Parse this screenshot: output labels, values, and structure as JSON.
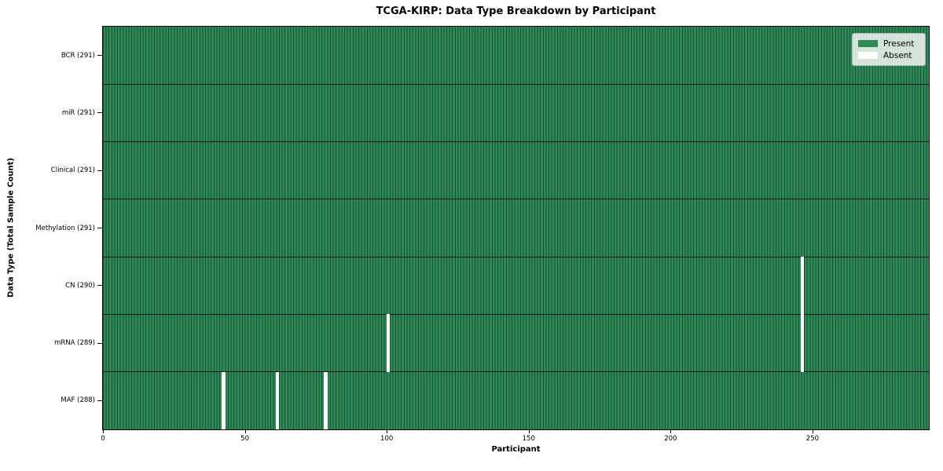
{
  "chart": {
    "title": "TCGA-KIRP: Data Type Breakdown by Participant",
    "xlabel": "Participant",
    "ylabel": "Data Type (Total Sample Count)"
  },
  "chart_data": {
    "type": "heatmap",
    "title": "TCGA-KIRP: Data Type Breakdown by Participant",
    "xlabel": "Participant",
    "ylabel": "Data Type (Total Sample Count)",
    "n_participants": 291,
    "x_range": [
      0,
      291
    ],
    "x_ticks": [
      0,
      50,
      100,
      150,
      200,
      250
    ],
    "grid": false,
    "legend_position": "upper right",
    "legend": [
      {
        "label": "Present",
        "color": "#2e8b57"
      },
      {
        "label": "Absent",
        "color": "#ffffff"
      }
    ],
    "rows": [
      {
        "label": "BCR (291)",
        "data_type": "BCR",
        "present_count": 291,
        "absent_participants": []
      },
      {
        "label": "miR (291)",
        "data_type": "miR",
        "present_count": 291,
        "absent_participants": []
      },
      {
        "label": "Clinical (291)",
        "data_type": "Clinical",
        "present_count": 291,
        "absent_participants": []
      },
      {
        "label": "Methylation (291)",
        "data_type": "Methylation",
        "present_count": 291,
        "absent_participants": []
      },
      {
        "label": "CN (290)",
        "data_type": "CN",
        "present_count": 290,
        "absent_participants": [
          246
        ]
      },
      {
        "label": "mRNA (289)",
        "data_type": "mRNA",
        "present_count": 289,
        "absent_participants": [
          100,
          246
        ]
      },
      {
        "label": "MAF (288)",
        "data_type": "MAF",
        "present_count": 288,
        "absent_participants": [
          42,
          61,
          78
        ]
      }
    ],
    "colors": {
      "present": "#2e8b57",
      "absent": "#ffffff",
      "cell_edge": "rgba(0,0,0,0.45)",
      "row_border": "#151515",
      "spine": "#000000",
      "legend_border": "#b3b3b3"
    }
  }
}
